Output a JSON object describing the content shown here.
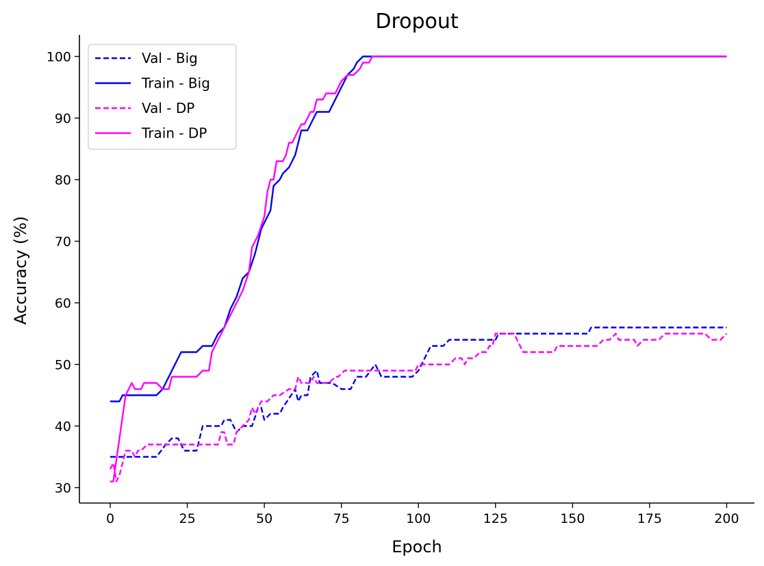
{
  "chart_data": {
    "type": "line",
    "title": "Dropout",
    "xlabel": "Epoch",
    "ylabel": "Accuracy (%)",
    "xlim": [
      -10,
      209
    ],
    "ylim": [
      27.5,
      103.5
    ],
    "xticks": [
      0,
      25,
      50,
      75,
      100,
      125,
      150,
      175,
      200
    ],
    "yticks": [
      30,
      40,
      50,
      60,
      70,
      80,
      90,
      100
    ],
    "grid": false,
    "legend_position": "top-left",
    "series": [
      {
        "name": "Val - Big",
        "color": "#0000ee",
        "dash": "dashed",
        "points": [
          [
            0,
            35
          ],
          [
            15,
            35
          ],
          [
            18,
            37
          ],
          [
            20,
            38
          ],
          [
            22,
            38
          ],
          [
            24,
            36
          ],
          [
            28,
            36
          ],
          [
            30,
            40
          ],
          [
            36,
            40
          ],
          [
            37,
            41
          ],
          [
            39,
            41
          ],
          [
            41,
            39
          ],
          [
            43,
            40
          ],
          [
            46,
            40
          ],
          [
            48,
            43
          ],
          [
            49,
            43
          ],
          [
            50,
            41
          ],
          [
            52,
            42
          ],
          [
            55,
            42
          ],
          [
            56,
            43
          ],
          [
            60,
            46
          ],
          [
            61,
            44
          ],
          [
            62,
            45
          ],
          [
            64,
            45
          ],
          [
            65,
            48
          ],
          [
            67,
            49
          ],
          [
            68,
            47
          ],
          [
            72,
            47
          ],
          [
            75,
            46
          ],
          [
            78,
            46
          ],
          [
            80,
            48
          ],
          [
            83,
            48
          ],
          [
            86,
            50
          ],
          [
            88,
            48
          ],
          [
            98,
            48
          ],
          [
            100,
            49
          ],
          [
            104,
            53
          ],
          [
            108,
            53
          ],
          [
            110,
            54
          ],
          [
            125,
            54
          ],
          [
            126,
            55
          ],
          [
            155,
            55
          ],
          [
            156,
            56
          ],
          [
            200,
            56
          ]
        ]
      },
      {
        "name": "Train - Big",
        "color": "#0000ee",
        "dash": "solid",
        "points": [
          [
            0,
            44
          ],
          [
            3,
            44
          ],
          [
            4,
            45
          ],
          [
            15,
            45
          ],
          [
            17,
            46
          ],
          [
            19,
            48
          ],
          [
            21,
            50
          ],
          [
            23,
            52
          ],
          [
            28,
            52
          ],
          [
            30,
            53
          ],
          [
            33,
            53
          ],
          [
            35,
            55
          ],
          [
            37,
            56
          ],
          [
            39,
            59
          ],
          [
            41,
            61
          ],
          [
            43,
            64
          ],
          [
            45,
            65
          ],
          [
            47,
            68
          ],
          [
            49,
            72
          ],
          [
            52,
            75
          ],
          [
            53,
            79
          ],
          [
            55,
            80
          ],
          [
            56,
            81
          ],
          [
            58,
            82
          ],
          [
            60,
            84
          ],
          [
            62,
            88
          ],
          [
            64,
            88
          ],
          [
            66,
            90
          ],
          [
            67,
            91
          ],
          [
            71,
            91
          ],
          [
            73,
            93
          ],
          [
            75,
            95
          ],
          [
            77,
            97
          ],
          [
            79,
            98
          ],
          [
            80,
            99
          ],
          [
            82,
            100
          ],
          [
            200,
            100
          ]
        ]
      },
      {
        "name": "Val - DP",
        "color": "#ff00ff",
        "dash": "dashed",
        "points": [
          [
            0,
            33
          ],
          [
            1,
            34
          ],
          [
            2,
            31
          ],
          [
            3,
            32
          ],
          [
            4,
            34
          ],
          [
            5,
            36
          ],
          [
            7,
            36
          ],
          [
            8,
            35
          ],
          [
            9,
            36
          ],
          [
            10,
            36
          ],
          [
            12,
            37
          ],
          [
            17,
            37
          ],
          [
            20,
            37
          ],
          [
            25,
            37
          ],
          [
            30,
            37
          ],
          [
            35,
            37
          ],
          [
            36,
            39
          ],
          [
            37,
            39
          ],
          [
            38,
            37
          ],
          [
            40,
            37
          ],
          [
            41,
            39
          ],
          [
            43,
            40
          ],
          [
            45,
            41
          ],
          [
            46,
            43
          ],
          [
            47,
            42
          ],
          [
            49,
            44
          ],
          [
            51,
            44
          ],
          [
            53,
            45
          ],
          [
            55,
            45
          ],
          [
            58,
            46
          ],
          [
            60,
            46
          ],
          [
            61,
            48
          ],
          [
            62,
            47
          ],
          [
            65,
            47
          ],
          [
            66,
            48
          ],
          [
            67,
            47
          ],
          [
            71,
            47
          ],
          [
            73,
            48
          ],
          [
            74,
            48
          ],
          [
            76,
            49
          ],
          [
            84,
            49
          ],
          [
            97,
            49
          ],
          [
            99,
            49
          ],
          [
            100,
            50
          ],
          [
            110,
            50
          ],
          [
            112,
            51
          ],
          [
            114,
            51
          ],
          [
            115,
            50
          ],
          [
            116,
            51
          ],
          [
            118,
            51
          ],
          [
            120,
            52
          ],
          [
            122,
            52
          ],
          [
            123,
            53
          ],
          [
            124,
            53
          ],
          [
            125,
            55
          ],
          [
            131,
            55
          ],
          [
            134,
            52
          ],
          [
            144,
            52
          ],
          [
            145,
            53
          ],
          [
            155,
            53
          ],
          [
            158,
            53
          ],
          [
            160,
            54
          ],
          [
            162,
            54
          ],
          [
            164,
            55
          ],
          [
            165,
            54
          ],
          [
            170,
            54
          ],
          [
            171,
            53
          ],
          [
            173,
            54
          ],
          [
            178,
            54
          ],
          [
            180,
            55
          ],
          [
            193,
            55
          ],
          [
            195,
            54
          ],
          [
            198,
            54
          ],
          [
            200,
            55
          ]
        ]
      },
      {
        "name": "Train - DP",
        "color": "#ff00ff",
        "dash": "solid",
        "points": [
          [
            0,
            31
          ],
          [
            1,
            31
          ],
          [
            3,
            38
          ],
          [
            5,
            45
          ],
          [
            7,
            47
          ],
          [
            8,
            46
          ],
          [
            10,
            46
          ],
          [
            11,
            47
          ],
          [
            15,
            47
          ],
          [
            17,
            46
          ],
          [
            19,
            46
          ],
          [
            20,
            48
          ],
          [
            28,
            48
          ],
          [
            30,
            49
          ],
          [
            32,
            49
          ],
          [
            33,
            52
          ],
          [
            35,
            54
          ],
          [
            37,
            56
          ],
          [
            39,
            58
          ],
          [
            41,
            60
          ],
          [
            43,
            62
          ],
          [
            45,
            65
          ],
          [
            46,
            69
          ],
          [
            48,
            71
          ],
          [
            50,
            74
          ],
          [
            51,
            78
          ],
          [
            52,
            80
          ],
          [
            53,
            80
          ],
          [
            54,
            83
          ],
          [
            56,
            83
          ],
          [
            57,
            84
          ],
          [
            58,
            86
          ],
          [
            59,
            86
          ],
          [
            61,
            88
          ],
          [
            62,
            89
          ],
          [
            63,
            89
          ],
          [
            65,
            91
          ],
          [
            66,
            91
          ],
          [
            67,
            93
          ],
          [
            69,
            93
          ],
          [
            70,
            94
          ],
          [
            73,
            94
          ],
          [
            75,
            96
          ],
          [
            77,
            97
          ],
          [
            79,
            97
          ],
          [
            81,
            98
          ],
          [
            82,
            99
          ],
          [
            84,
            99
          ],
          [
            85,
            100
          ],
          [
            200,
            100
          ]
        ]
      }
    ]
  }
}
